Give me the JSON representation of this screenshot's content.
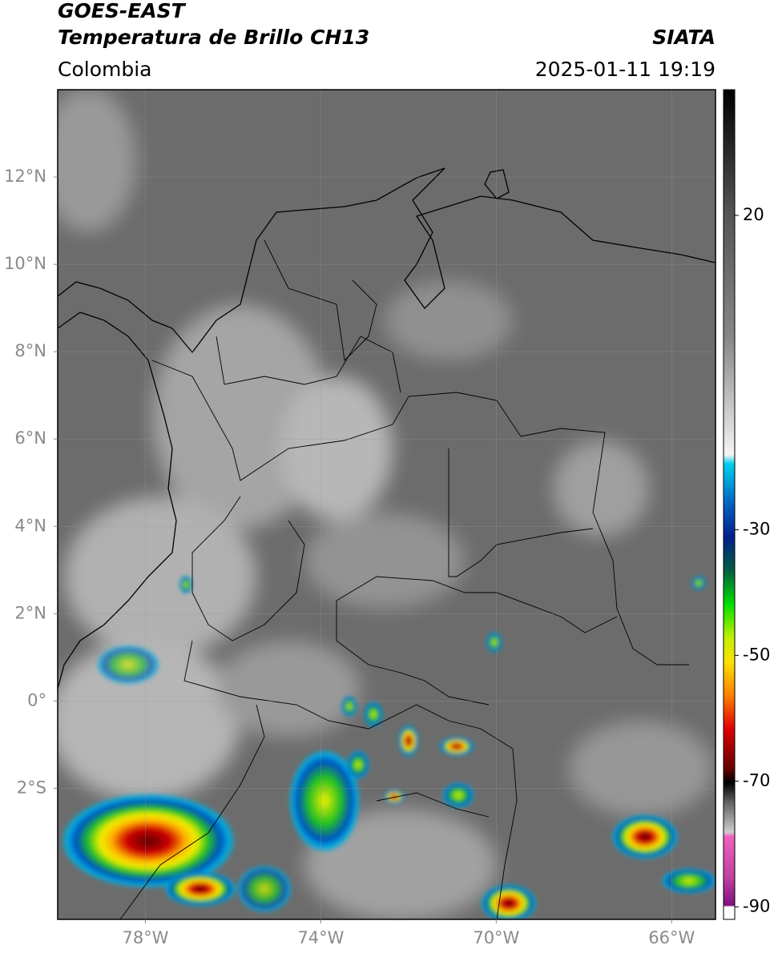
{
  "header": {
    "line1": "GOES-EAST",
    "line2": "Temperatura de Brillo CH13",
    "source": "SIATA",
    "region": "Colombia",
    "datetime": "2025-01-11 19:19"
  },
  "map": {
    "lonlim": [
      -80,
      -65
    ],
    "latlim": [
      -5,
      14
    ],
    "lat_ticks": [
      {
        "value": 12,
        "label": "12°N"
      },
      {
        "value": 10,
        "label": "10°N"
      },
      {
        "value": 8,
        "label": "8°N"
      },
      {
        "value": 6,
        "label": "6°N"
      },
      {
        "value": 4,
        "label": "4°N"
      },
      {
        "value": 2,
        "label": "2°N"
      },
      {
        "value": 0,
        "label": "0°"
      },
      {
        "value": -2,
        "label": "2°S"
      }
    ],
    "lon_ticks": [
      {
        "value": -78,
        "label": "78°W"
      },
      {
        "value": -74,
        "label": "74°W"
      },
      {
        "value": -70,
        "label": "70°W"
      },
      {
        "value": -66,
        "label": "66°W"
      }
    ]
  },
  "colorbar": {
    "range": [
      -92,
      40
    ],
    "ticks": [
      20,
      -30,
      -50,
      -70,
      -90
    ]
  }
}
